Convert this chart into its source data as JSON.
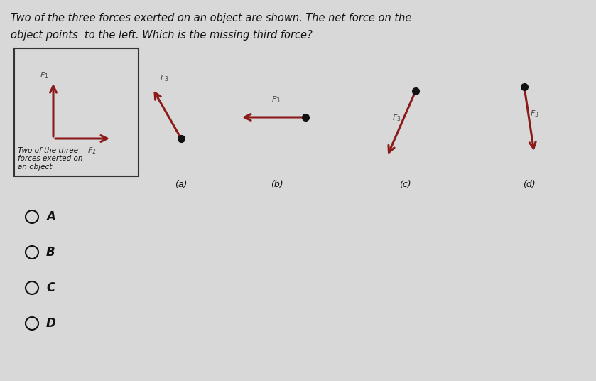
{
  "bg_color": "#d8d8d8",
  "title_line1": "Two of the three forces exerted on an object are shown. The net force on the",
  "title_line2": "object points  to the left. Which is the missing third force?",
  "arrow_color": "#8b1a1a",
  "dot_color": "#111111",
  "label_color": "#444444",
  "box_text": "Two of the three\nforces exerted on\nan object",
  "options": [
    "A",
    "B",
    "C",
    "D"
  ],
  "title_fontsize": 10.5,
  "label_fontsize": 8.5,
  "sublabel_fontsize": 9
}
